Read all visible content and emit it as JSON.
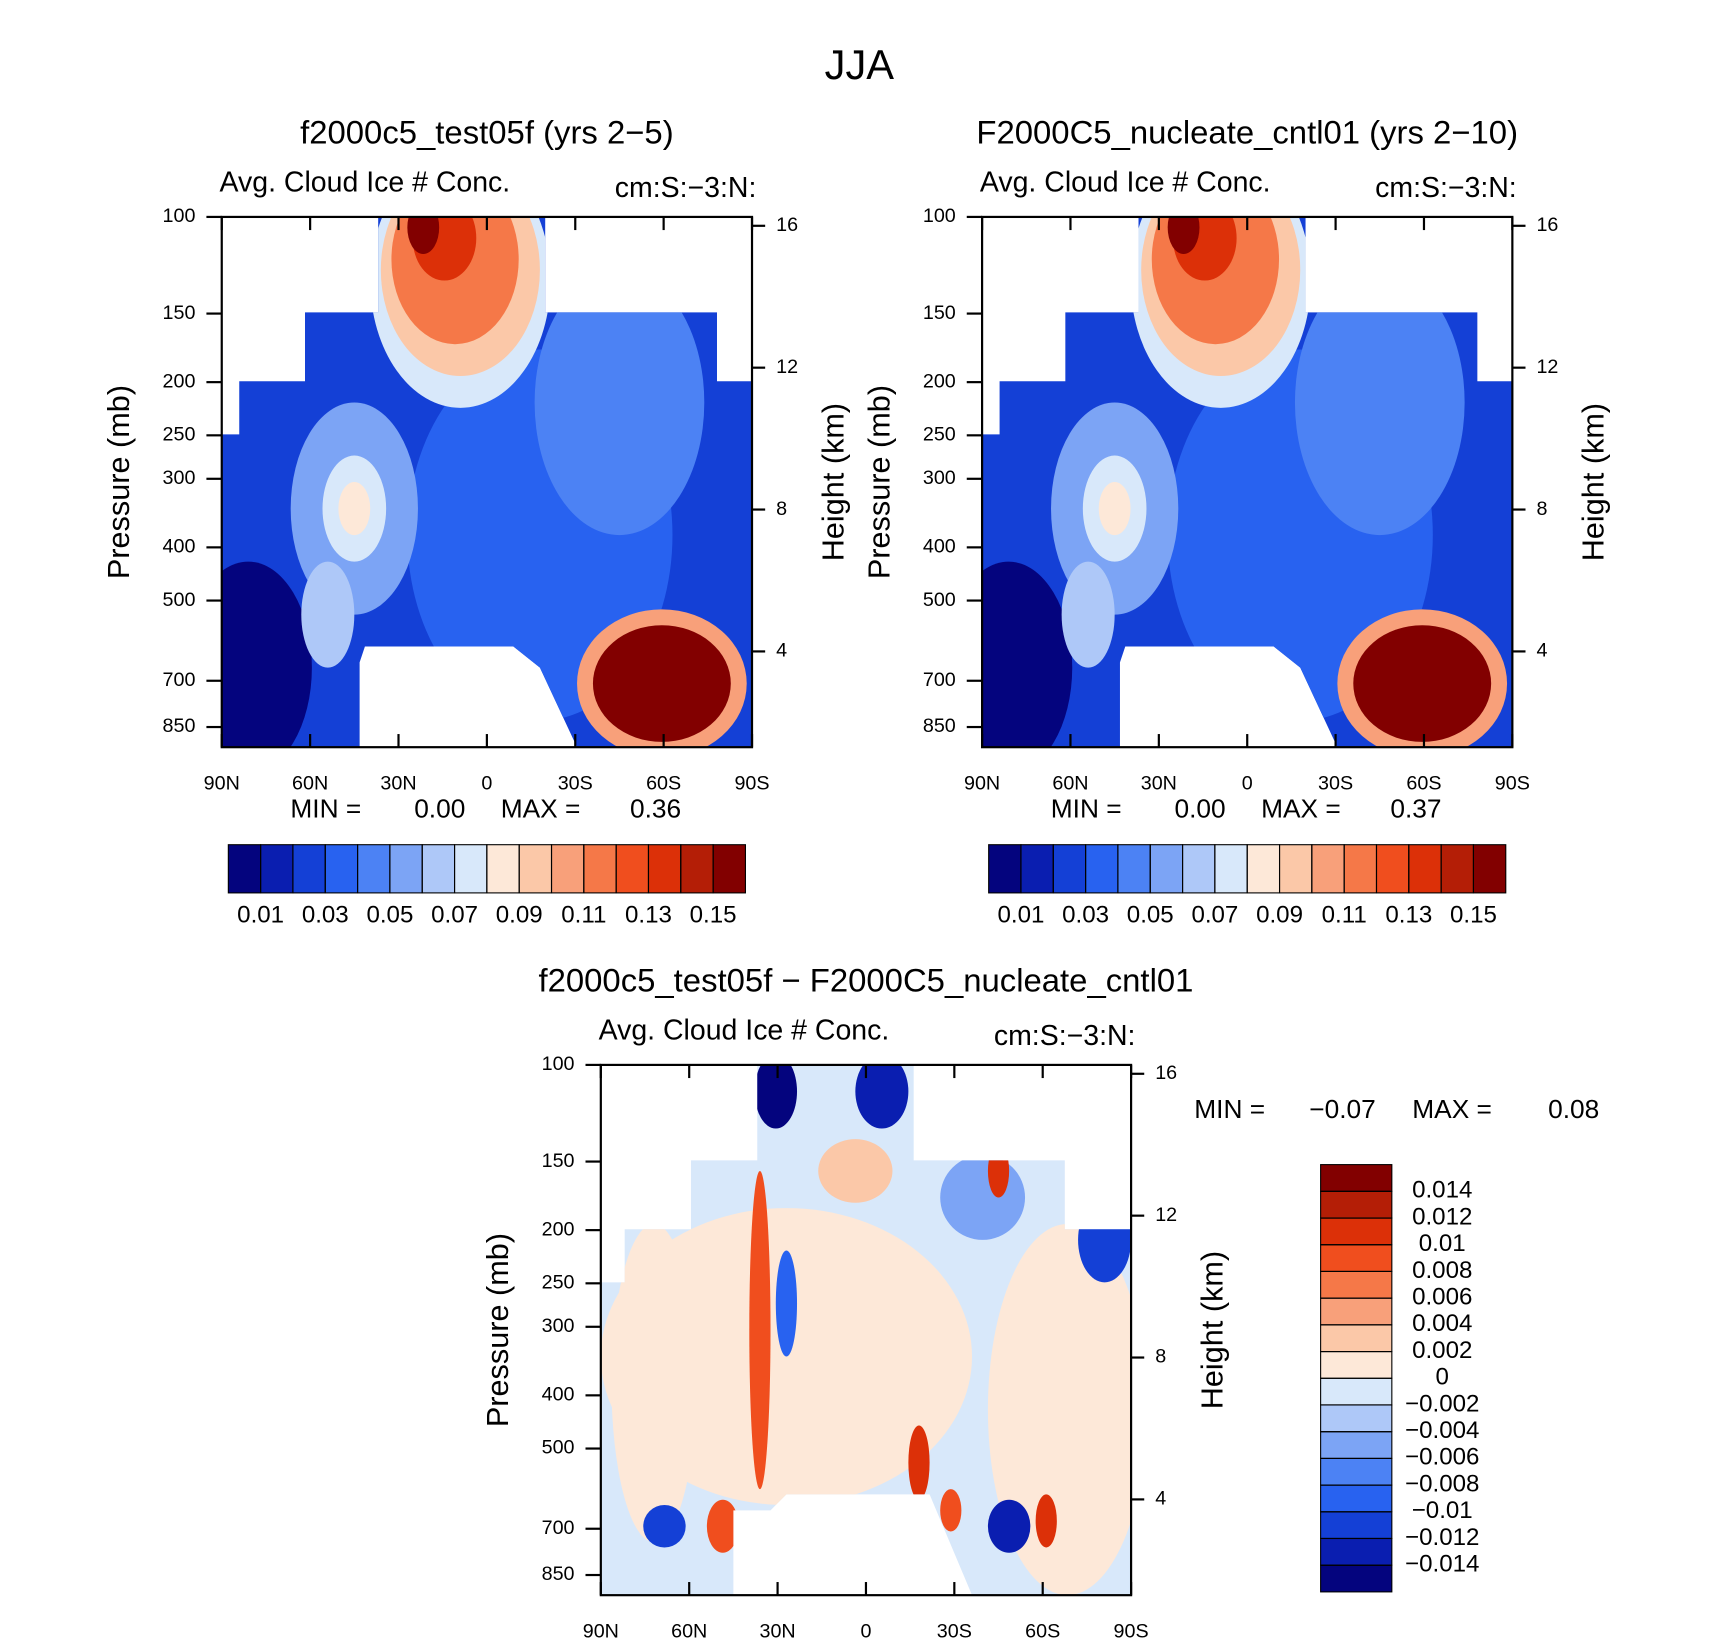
{
  "title": "JJA",
  "chart_data": [
    {
      "type": "contour",
      "title": "f2000c5_test05f (yrs 2−5)",
      "subtitle": "Avg. Cloud Ice # Conc.",
      "units": "cm:S:−3:N:",
      "y_label": "Pressure (mb)",
      "y2_label": "Height (km)",
      "xlim": [
        90,
        -90
      ],
      "xticks": [
        {
          "value": 90,
          "label": "90N"
        },
        {
          "value": 60,
          "label": "60N"
        },
        {
          "value": 30,
          "label": "30N"
        },
        0,
        {
          "value": -30,
          "label": "30S"
        },
        {
          "value": -60,
          "label": "60S"
        },
        {
          "value": -90,
          "label": "90S"
        }
      ],
      "ylim": [
        925,
        100
      ],
      "y_log": true,
      "yticks": [
        100,
        150,
        200,
        250,
        300,
        400,
        500,
        700,
        850
      ],
      "y2lim": [
        1.3,
        16.25
      ],
      "y2ticks": [
        4,
        8,
        12,
        16
      ],
      "stats": [
        {
          "name": "MIN =",
          "value": 0,
          "label": "0.00"
        },
        {
          "name": "MAX =",
          "value": 0.36
        }
      ],
      "colorbar_orientation": "horizontal",
      "levels": [
        0.01,
        0.02,
        0.03,
        0.04,
        0.05,
        0.06,
        0.07,
        0.08,
        0.09,
        0.1,
        0.11,
        0.12,
        0.13,
        0.14,
        0.15
      ],
      "colorbar_ticks": [
        0.01,
        0.03,
        0.05,
        0.07,
        0.09,
        0.11,
        0.13,
        0.15
      ],
      "colors": [
        "#04047e",
        "#0a1eb0",
        "#1440d6",
        "#2862f0",
        "#4c82f4",
        "#7ca4f5",
        "#aec8f8",
        "#d8e8fa",
        "#fde8d8",
        "#fbc8a8",
        "#f8a07a",
        "#f57848",
        "#f04e1e",
        "#dc3008",
        "#b41e06",
        "#820000"
      ]
    },
    {
      "type": "contour",
      "title": "F2000C5_nucleate_cntl01 (yrs 2−10)",
      "subtitle": "Avg. Cloud Ice # Conc.",
      "units": "cm:S:−3:N:",
      "y_label": "Pressure (mb)",
      "y2_label": "Height (km)",
      "xlim": [
        90,
        -90
      ],
      "xticks": [
        {
          "value": 90,
          "label": "90N"
        },
        {
          "value": 60,
          "label": "60N"
        },
        {
          "value": 30,
          "label": "30N"
        },
        0,
        {
          "value": -30,
          "label": "30S"
        },
        {
          "value": -60,
          "label": "60S"
        },
        {
          "value": -90,
          "label": "90S"
        }
      ],
      "ylim": [
        925,
        100
      ],
      "y_log": true,
      "yticks": [
        100,
        150,
        200,
        250,
        300,
        400,
        500,
        700,
        850
      ],
      "y2lim": [
        1.3,
        16.25
      ],
      "y2ticks": [
        4,
        8,
        12,
        16
      ],
      "stats": [
        {
          "name": "MIN =",
          "value": 0,
          "label": "0.00"
        },
        {
          "name": "MAX =",
          "value": 0.37
        }
      ],
      "colorbar_orientation": "horizontal",
      "levels": [
        0.01,
        0.02,
        0.03,
        0.04,
        0.05,
        0.06,
        0.07,
        0.08,
        0.09,
        0.1,
        0.11,
        0.12,
        0.13,
        0.14,
        0.15
      ],
      "colorbar_ticks": [
        0.01,
        0.03,
        0.05,
        0.07,
        0.09,
        0.11,
        0.13,
        0.15
      ],
      "colors": [
        "#04047e",
        "#0a1eb0",
        "#1440d6",
        "#2862f0",
        "#4c82f4",
        "#7ca4f5",
        "#aec8f8",
        "#d8e8fa",
        "#fde8d8",
        "#fbc8a8",
        "#f8a07a",
        "#f57848",
        "#f04e1e",
        "#dc3008",
        "#b41e06",
        "#820000"
      ]
    },
    {
      "type": "contour",
      "title": "f2000c5_test05f − F2000C5_nucleate_cntl01",
      "subtitle": "Avg. Cloud Ice # Conc.",
      "units": "cm:S:−3:N:",
      "y_label": "Pressure (mb)",
      "y2_label": "Height (km)",
      "xlim": [
        90,
        -90
      ],
      "xticks": [
        {
          "value": 90,
          "label": "90N"
        },
        {
          "value": 60,
          "label": "60N"
        },
        {
          "value": 30,
          "label": "30N"
        },
        0,
        {
          "value": -30,
          "label": "30S"
        },
        {
          "value": -60,
          "label": "60S"
        },
        {
          "value": -90,
          "label": "90S"
        }
      ],
      "ylim": [
        925,
        100
      ],
      "y_log": true,
      "yticks": [
        100,
        150,
        200,
        250,
        300,
        400,
        500,
        700,
        850
      ],
      "y2lim": [
        1.3,
        16.25
      ],
      "y2ticks": [
        4,
        8,
        12,
        16
      ],
      "stats": [
        {
          "name": "MIN =",
          "value": -0.07,
          "label": "−0.07"
        },
        {
          "name": "MAX =",
          "value": 0.08
        }
      ],
      "colorbar_orientation": "vertical",
      "levels": [
        -0.014,
        -0.012,
        -0.01,
        -0.008,
        -0.006,
        -0.004,
        -0.002,
        0,
        0.002,
        0.004,
        0.006,
        0.008,
        0.01,
        0.012,
        0.014
      ],
      "colorbar_ticks": [
        {
          "value": -0.014,
          "label": "−0.014"
        },
        {
          "value": -0.012,
          "label": "−0.012"
        },
        {
          "value": -0.01,
          "label": "−0.01"
        },
        {
          "value": -0.008,
          "label": "−0.008"
        },
        {
          "value": -0.006,
          "label": "−0.006"
        },
        {
          "value": -0.004,
          "label": "−0.004"
        },
        {
          "value": -0.002,
          "label": "−0.002"
        },
        0,
        0.002,
        0.004,
        0.006,
        0.008,
        0.01,
        0.012,
        0.014
      ],
      "colors": [
        "#04047e",
        "#0a1eb0",
        "#1440d6",
        "#2862f0",
        "#4c82f4",
        "#7ca4f5",
        "#aec8f8",
        "#d8e8fa",
        "#fde8d8",
        "#fbc8a8",
        "#f8a07a",
        "#f57848",
        "#f04e1e",
        "#dc3008",
        "#b41e06",
        "#820000"
      ]
    }
  ]
}
